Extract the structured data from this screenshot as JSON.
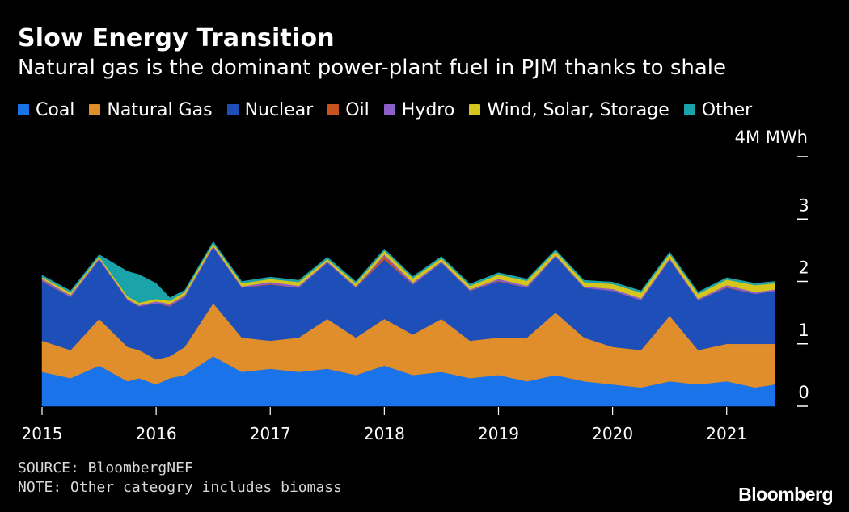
{
  "chart_data": {
    "type": "area",
    "stacked": true,
    "title": "Slow Energy Transition",
    "subtitle": "Natural gas is the dominant power-plant fuel in PJM thanks to shale",
    "y_unit_label": "4M MWh",
    "ylim": [
      0,
      4
    ],
    "y_ticks": [
      0,
      1,
      2,
      3,
      4
    ],
    "y_tick_labels": [
      "0",
      "1",
      "2",
      "3",
      ""
    ],
    "x_ticks": [
      2015,
      2016,
      2017,
      2018,
      2019,
      2020,
      2021
    ],
    "x_tick_labels": [
      "2015",
      "2016",
      "2017",
      "2018",
      "2019",
      "2020",
      "2021"
    ],
    "xlim": [
      2015.0,
      2021.42
    ],
    "x": [
      2015.0,
      2015.25,
      2015.5,
      2015.75,
      2015.85,
      2016.0,
      2016.12,
      2016.25,
      2016.5,
      2016.75,
      2017.0,
      2017.25,
      2017.5,
      2017.75,
      2018.0,
      2018.25,
      2018.5,
      2018.75,
      2019.0,
      2019.25,
      2019.5,
      2019.75,
      2020.0,
      2020.25,
      2020.5,
      2020.75,
      2021.0,
      2021.25,
      2021.42
    ],
    "series": [
      {
        "name": "Coal",
        "color": "#1a73e8",
        "values": [
          0.55,
          0.45,
          0.65,
          0.4,
          0.45,
          0.35,
          0.45,
          0.5,
          0.8,
          0.55,
          0.6,
          0.55,
          0.6,
          0.5,
          0.65,
          0.5,
          0.55,
          0.45,
          0.5,
          0.4,
          0.5,
          0.4,
          0.35,
          0.3,
          0.4,
          0.35,
          0.4,
          0.3,
          0.35
        ]
      },
      {
        "name": "Natural Gas",
        "color": "#e08e2c",
        "values": [
          0.5,
          0.45,
          0.75,
          0.55,
          0.45,
          0.4,
          0.35,
          0.45,
          0.85,
          0.55,
          0.45,
          0.55,
          0.8,
          0.6,
          0.75,
          0.65,
          0.85,
          0.6,
          0.6,
          0.7,
          1.0,
          0.7,
          0.6,
          0.6,
          1.05,
          0.55,
          0.6,
          0.7,
          0.65
        ]
      },
      {
        "name": "Nuclear",
        "color": "#1e4fb8",
        "values": [
          0.95,
          0.85,
          0.95,
          0.75,
          0.7,
          0.9,
          0.8,
          0.8,
          0.9,
          0.8,
          0.9,
          0.8,
          0.9,
          0.8,
          0.95,
          0.8,
          0.9,
          0.8,
          0.9,
          0.8,
          0.9,
          0.8,
          0.9,
          0.8,
          0.9,
          0.8,
          0.9,
          0.8,
          0.85
        ]
      },
      {
        "name": "Oil",
        "color": "#c8531f",
        "values": [
          0.01,
          0.0,
          0.0,
          0.0,
          0.0,
          0.0,
          0.01,
          0.0,
          0.0,
          0.0,
          0.01,
          0.0,
          0.0,
          0.0,
          0.05,
          0.0,
          0.0,
          0.0,
          0.01,
          0.0,
          0.0,
          0.0,
          0.0,
          0.0,
          0.0,
          0.0,
          0.01,
          0.0,
          0.0
        ]
      },
      {
        "name": "Hydro",
        "color": "#8b5fc7",
        "values": [
          0.03,
          0.03,
          0.02,
          0.02,
          0.02,
          0.03,
          0.03,
          0.03,
          0.02,
          0.02,
          0.03,
          0.03,
          0.02,
          0.02,
          0.03,
          0.03,
          0.02,
          0.02,
          0.03,
          0.03,
          0.02,
          0.02,
          0.03,
          0.03,
          0.02,
          0.02,
          0.03,
          0.03,
          0.02
        ]
      },
      {
        "name": "Wind, Solar, Storage",
        "color": "#d6c51d",
        "values": [
          0.03,
          0.04,
          0.03,
          0.04,
          0.04,
          0.04,
          0.05,
          0.05,
          0.04,
          0.05,
          0.05,
          0.06,
          0.04,
          0.05,
          0.06,
          0.07,
          0.05,
          0.06,
          0.07,
          0.08,
          0.06,
          0.07,
          0.08,
          0.09,
          0.07,
          0.08,
          0.09,
          0.11,
          0.1
        ]
      },
      {
        "name": "Other",
        "color": "#1aa3a8",
        "values": [
          0.03,
          0.03,
          0.03,
          0.4,
          0.45,
          0.25,
          0.05,
          0.03,
          0.03,
          0.03,
          0.03,
          0.03,
          0.03,
          0.03,
          0.03,
          0.03,
          0.03,
          0.03,
          0.03,
          0.03,
          0.03,
          0.03,
          0.03,
          0.03,
          0.03,
          0.03,
          0.03,
          0.03,
          0.03
        ]
      }
    ]
  },
  "footer": {
    "source": "SOURCE: BloombergNEF",
    "note": "NOTE: Other cateogry includes biomass"
  },
  "brand": {
    "logo_text": "Bloomberg"
  }
}
